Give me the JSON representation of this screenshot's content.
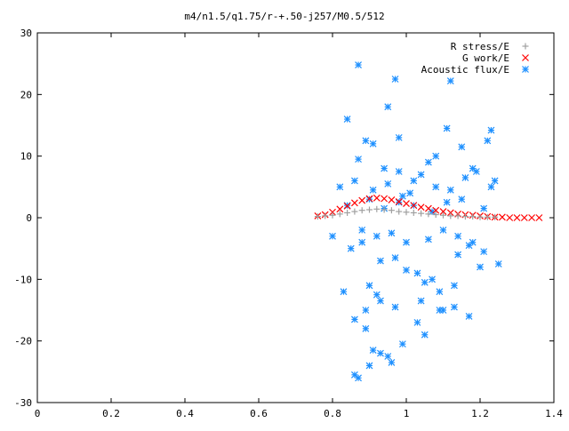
{
  "chart_data": {
    "type": "scatter",
    "title": "m4/n1.5/q1.75/r-+.50-j257/M0.5/512",
    "xlabel": "",
    "ylabel": "",
    "xlim": [
      0,
      1.4
    ],
    "ylim": [
      -30,
      30
    ],
    "x_ticks": [
      "0",
      "0.2",
      "0.4",
      "0.6",
      "0.8",
      "1",
      "1.2",
      "1.4"
    ],
    "y_ticks": [
      "30",
      "20",
      "10",
      "0",
      "-10",
      "-20",
      "-30"
    ],
    "x_tick_values": [
      0,
      0.2,
      0.4,
      0.6,
      0.8,
      1.0,
      1.2,
      1.4
    ],
    "y_tick_values": [
      30,
      20,
      10,
      0,
      -10,
      -20,
      -30
    ],
    "grid": false,
    "legend_position": "top-right",
    "series": [
      {
        "name": "R stress/E",
        "marker": "plus",
        "color": "#a0a0a0",
        "x": [
          0.76,
          0.78,
          0.8,
          0.82,
          0.84,
          0.86,
          0.88,
          0.9,
          0.92,
          0.94,
          0.96,
          0.98,
          1.0,
          1.02,
          1.04,
          1.06,
          1.08,
          1.1,
          1.12,
          1.14,
          1.16,
          1.18,
          1.2,
          1.22,
          1.24
        ],
        "y": [
          0.2,
          0.3,
          0.4,
          0.6,
          0.8,
          1.0,
          1.2,
          1.3,
          1.4,
          1.3,
          1.2,
          1.0,
          0.9,
          0.8,
          0.7,
          0.6,
          0.5,
          0.4,
          0.3,
          0.3,
          0.2,
          0.2,
          0.1,
          0.1,
          0.1
        ]
      },
      {
        "name": "G work/E",
        "marker": "cross",
        "color": "#ff0000",
        "x": [
          0.76,
          0.78,
          0.8,
          0.82,
          0.84,
          0.86,
          0.88,
          0.9,
          0.92,
          0.94,
          0.96,
          0.98,
          1.0,
          1.02,
          1.04,
          1.06,
          1.08,
          1.1,
          1.12,
          1.14,
          1.16,
          1.18,
          1.2,
          1.22,
          1.24,
          1.26,
          1.28,
          1.3,
          1.32,
          1.34,
          1.36
        ],
        "y": [
          0.3,
          0.5,
          0.9,
          1.4,
          1.9,
          2.4,
          2.8,
          3.1,
          3.2,
          3.1,
          2.9,
          2.6,
          2.3,
          2.0,
          1.7,
          1.5,
          1.2,
          1.0,
          0.8,
          0.6,
          0.5,
          0.4,
          0.3,
          0.2,
          0.1,
          0.1,
          0.0,
          0.0,
          0.0,
          0.0,
          0.0
        ]
      },
      {
        "name": "Acoustic flux/E",
        "marker": "star",
        "color": "#1e90ff",
        "x": [
          0.87,
          0.84,
          0.95,
          0.97,
          0.98,
          1.12,
          0.91,
          0.89,
          1.11,
          1.23,
          1.15,
          0.87,
          0.94,
          0.98,
          1.08,
          1.06,
          1.02,
          1.22,
          1.18,
          1.24,
          1.07,
          0.83,
          0.9,
          0.92,
          1.04,
          1.1,
          1.13,
          1.2,
          1.25,
          0.8,
          0.85,
          0.88,
          0.93,
          0.97,
          1.0,
          1.03,
          1.05,
          1.09,
          1.14,
          1.17,
          1.21,
          0.82,
          0.86,
          0.91,
          0.95,
          0.99,
          1.01,
          1.04,
          1.08,
          1.12,
          1.16,
          1.19,
          1.23,
          0.88,
          0.92,
          0.96,
          1.0,
          1.06,
          1.1,
          1.14,
          1.18,
          0.84,
          0.9,
          0.94,
          0.98,
          1.02,
          1.07,
          1.11,
          1.15,
          1.21,
          0.86,
          0.89,
          0.93,
          0.97,
          1.03,
          1.09,
          1.13,
          1.17,
          0.91,
          0.95,
          0.99,
          1.05,
          0.9,
          0.93,
          0.96,
          0.87,
          0.86,
          0.89
        ],
        "y": [
          24.8,
          16.0,
          18.0,
          22.5,
          13.0,
          22.2,
          12.0,
          12.5,
          14.5,
          14.2,
          11.5,
          9.5,
          8.0,
          7.5,
          10.0,
          9.0,
          6.0,
          12.5,
          8.0,
          6.0,
          -10.0,
          -12.0,
          -11.0,
          -12.5,
          -13.5,
          -15.0,
          -11.0,
          -8.0,
          -7.5,
          -3.0,
          -5.0,
          -4.0,
          -7.0,
          -6.5,
          -8.5,
          -9.0,
          -10.5,
          -12.0,
          -6.0,
          -4.5,
          -5.5,
          5.0,
          6.0,
          4.5,
          5.5,
          3.5,
          4.0,
          7.0,
          5.0,
          4.5,
          6.5,
          7.5,
          5.0,
          -2.0,
          -3.0,
          -2.5,
          -4.0,
          -3.5,
          -2.0,
          -3.0,
          -4.0,
          2.0,
          3.0,
          1.5,
          2.5,
          2.0,
          1.0,
          2.5,
          3.0,
          1.5,
          -16.5,
          -15.0,
          -13.5,
          -14.5,
          -17.0,
          -15.0,
          -14.5,
          -16.0,
          -21.5,
          -22.5,
          -20.5,
          -19.0,
          -24.0,
          -22.0,
          -23.5,
          -26.0,
          -25.5,
          -18.0
        ]
      }
    ]
  }
}
